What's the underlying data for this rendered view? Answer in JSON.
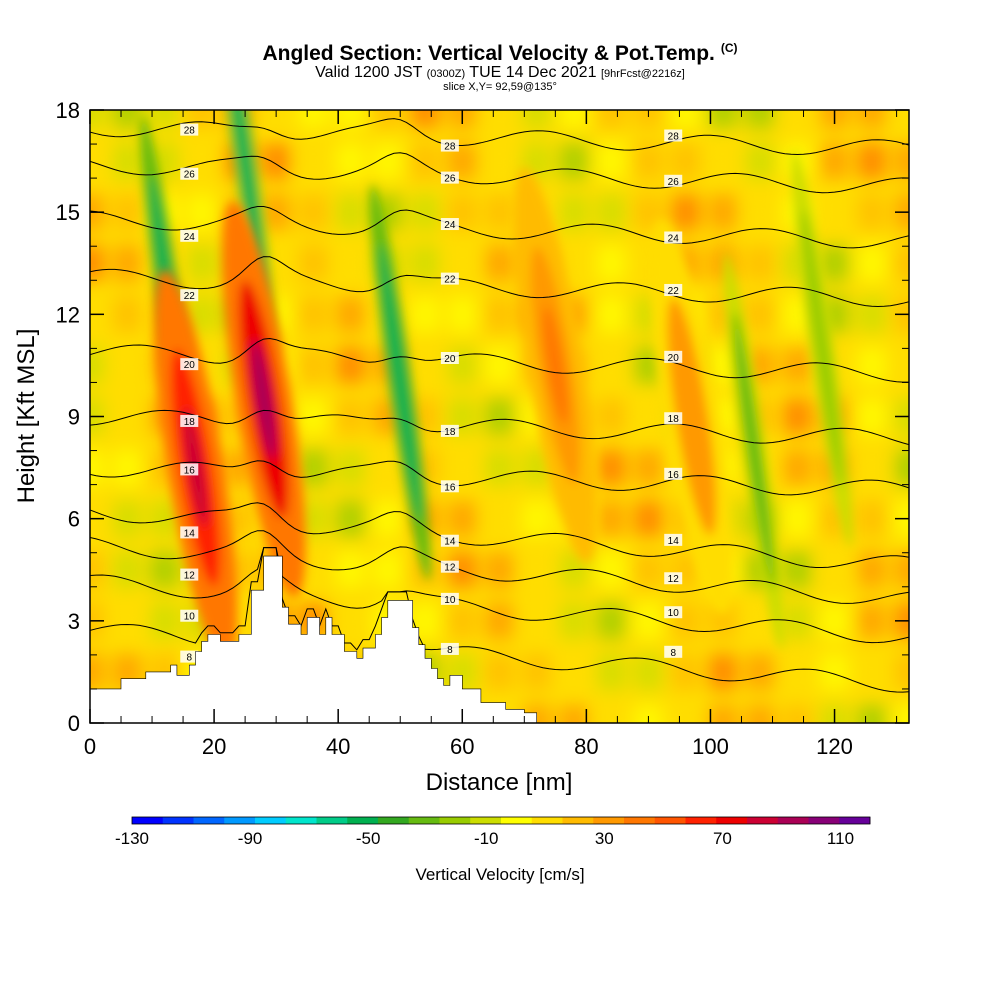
{
  "title": {
    "main": "Angled Section: Vertical Velocity & Pot.Temp.",
    "corner": "(C)",
    "valid_prefix": "Valid 1200 JST",
    "utc": "(0300Z)",
    "valid_date": "TUE 14 Dec 2021",
    "fcst": "[9hrFcst@2216z]",
    "slice": "slice X,Y= 92,59@135°"
  },
  "chart_data": {
    "type": "heatmap",
    "xlabel": "Distance [nm]",
    "ylabel": "Height [Kft MSL]",
    "xlim": [
      0,
      132
    ],
    "ylim": [
      0,
      18
    ],
    "xticks": [
      0,
      20,
      40,
      60,
      80,
      100,
      120
    ],
    "yticks": [
      0,
      3,
      6,
      9,
      12,
      15,
      18
    ],
    "colorbar": {
      "label": "Vertical Velocity [cm/s]",
      "range": [
        -130,
        120
      ],
      "tick_labels": [
        -130,
        -90,
        -50,
        -10,
        30,
        70,
        110
      ],
      "colors": [
        "#0000ff",
        "#0033ff",
        "#0066ff",
        "#0099ff",
        "#00ccff",
        "#00e5cc",
        "#00cc88",
        "#00b050",
        "#33a820",
        "#66bb11",
        "#99cc00",
        "#ccdd00",
        "#ffff00",
        "#ffdd00",
        "#ffbb00",
        "#ff9900",
        "#ff7700",
        "#ff5500",
        "#ff2200",
        "#ee0000",
        "#cc0033",
        "#aa0055",
        "#880077",
        "#660099"
      ]
    },
    "terrain_profile": [
      [
        0,
        1
      ],
      [
        5,
        1
      ],
      [
        5,
        1.3
      ],
      [
        9,
        1.3
      ],
      [
        9,
        1.5
      ],
      [
        13,
        1.5
      ],
      [
        13,
        1.7
      ],
      [
        14,
        1.7
      ],
      [
        14,
        1.4
      ],
      [
        16,
        1.4
      ],
      [
        16,
        1.7
      ],
      [
        17,
        1.7
      ],
      [
        17,
        2.1
      ],
      [
        18,
        2.1
      ],
      [
        18,
        2.4
      ],
      [
        19,
        2.4
      ],
      [
        19,
        2.6
      ],
      [
        21,
        2.6
      ],
      [
        21,
        2.4
      ],
      [
        24,
        2.4
      ],
      [
        24,
        2.6
      ],
      [
        26,
        2.6
      ],
      [
        26,
        3.9
      ],
      [
        28,
        3.9
      ],
      [
        28,
        4.9
      ],
      [
        31,
        4.9
      ],
      [
        31,
        3.4
      ],
      [
        32,
        3.4
      ],
      [
        32,
        2.9
      ],
      [
        34,
        2.9
      ],
      [
        34,
        2.6
      ],
      [
        35,
        2.6
      ],
      [
        35,
        3.1
      ],
      [
        37,
        3.1
      ],
      [
        37,
        2.6
      ],
      [
        38,
        2.6
      ],
      [
        38,
        3.1
      ],
      [
        39,
        3.1
      ],
      [
        39,
        2.6
      ],
      [
        41,
        2.6
      ],
      [
        41,
        2.1
      ],
      [
        43,
        2.1
      ],
      [
        43,
        1.9
      ],
      [
        44,
        1.9
      ],
      [
        44,
        2.2
      ],
      [
        46,
        2.2
      ],
      [
        46,
        2.6
      ],
      [
        47,
        2.6
      ],
      [
        47,
        3.1
      ],
      [
        48,
        3.1
      ],
      [
        48,
        3.6
      ],
      [
        52,
        3.6
      ],
      [
        52,
        2.8
      ],
      [
        53,
        2.8
      ],
      [
        53,
        2.3
      ],
      [
        54,
        2.3
      ],
      [
        54,
        1.9
      ],
      [
        55,
        1.9
      ],
      [
        55,
        1.6
      ],
      [
        56,
        1.6
      ],
      [
        56,
        1.3
      ],
      [
        57,
        1.3
      ],
      [
        57,
        1.1
      ],
      [
        58,
        1.1
      ],
      [
        58,
        1.4
      ],
      [
        60,
        1.4
      ],
      [
        60,
        1.0
      ],
      [
        63,
        1.0
      ],
      [
        63,
        0.6
      ],
      [
        67,
        0.6
      ],
      [
        67,
        0.4
      ],
      [
        70,
        0.4
      ],
      [
        70,
        0.3
      ],
      [
        72,
        0.3
      ],
      [
        72,
        0
      ],
      [
        132,
        0
      ]
    ],
    "updraft_cores": [
      {
        "x": 17,
        "y": 7.5,
        "w": 85
      },
      {
        "x": 28,
        "y": 9.5,
        "w": 95
      },
      {
        "x": 75,
        "y": 10.5,
        "w": 45
      },
      {
        "x": 97,
        "y": 9,
        "w": 35
      }
    ],
    "downdraft_bands": [
      {
        "x": 13,
        "y": 12,
        "w": -55
      },
      {
        "x": 25,
        "y": 16.5,
        "w": -50
      },
      {
        "x": 50,
        "y": 10,
        "w": -55
      },
      {
        "x": 107,
        "y": 8,
        "w": -30
      },
      {
        "x": 118,
        "y": 11,
        "w": -20
      }
    ],
    "isentropes": [
      {
        "label": "8",
        "level": 2.0
      },
      {
        "label": "10",
        "level": 3.4
      },
      {
        "label": "12",
        "level": 4.5
      },
      {
        "label": "14",
        "level": 5.5
      },
      {
        "label": "16",
        "level": 7.2
      },
      {
        "label": "18",
        "level": 8.7
      },
      {
        "label": "20",
        "level": 10.6
      },
      {
        "label": "22",
        "level": 12.8
      },
      {
        "label": "24",
        "level": 14.5
      },
      {
        "label": "26",
        "level": 16.1
      },
      {
        "label": "28",
        "level": 17.2
      }
    ]
  }
}
